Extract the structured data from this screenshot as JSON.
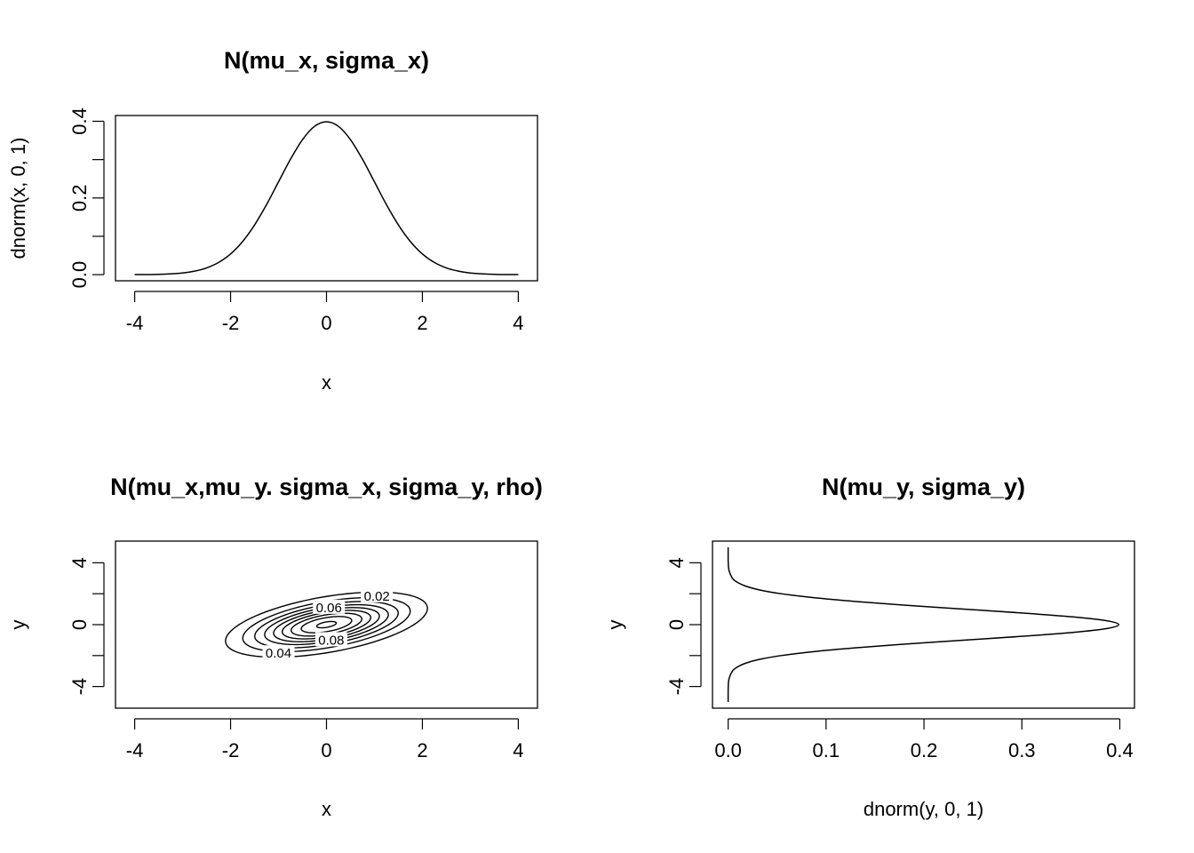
{
  "chart_data": [
    {
      "type": "line",
      "title": "N(mu_x, sigma_x)",
      "xlabel": "x",
      "ylabel": "dnorm(x, 0, 1)",
      "xlim": [
        -4.4,
        4.4
      ],
      "ylim": [
        -0.016,
        0.415
      ],
      "xticks": [
        -4,
        -2,
        0,
        2,
        4
      ],
      "yticks": [
        0.0,
        0.1,
        0.2,
        0.3,
        0.4
      ],
      "yticklabels": [
        "0.0",
        "",
        "0.2",
        "",
        "0.4"
      ],
      "series": [
        {
          "x": [
            -4.0,
            -3.5,
            -3.0,
            -2.75,
            -2.5,
            -2.25,
            -2.0,
            -1.75,
            -1.5,
            -1.25,
            -1.0,
            -0.75,
            -0.5,
            -0.25,
            0.0,
            0.25,
            0.5,
            0.75,
            1.0,
            1.25,
            1.5,
            1.75,
            2.0,
            2.25,
            2.5,
            2.75,
            3.0,
            3.5,
            4.0
          ],
          "y": [
            0.0001,
            0.0009,
            0.0044,
            0.0091,
            0.0175,
            0.0317,
            0.054,
            0.0863,
            0.1295,
            0.1826,
            0.242,
            0.3011,
            0.3521,
            0.3867,
            0.3989,
            0.3867,
            0.3521,
            0.3011,
            0.242,
            0.1826,
            0.1295,
            0.0863,
            0.054,
            0.0317,
            0.0175,
            0.0091,
            0.0044,
            0.0009,
            0.0001
          ]
        }
      ],
      "grid": false
    },
    {
      "type": "contour",
      "title": "N(mu_x,mu_y. sigma_x, sigma_y, rho)",
      "xlabel": "x",
      "ylabel": "y",
      "xlim": [
        -4.4,
        4.4
      ],
      "ylim": [
        -5.4,
        5.4
      ],
      "xticks": [
        -4,
        -2,
        0,
        2,
        4
      ],
      "yticks": [
        -4,
        -2,
        0,
        2,
        4
      ],
      "yticklabels": [
        "-4",
        "",
        "0",
        "",
        "4"
      ],
      "rho": 0.5,
      "levels": [
        0.02,
        0.04,
        0.06,
        0.08,
        0.1,
        0.12,
        0.14,
        0.16,
        0.18
      ],
      "level_labels": [
        {
          "text": "0.02",
          "x": 1.05,
          "y": 1.85
        },
        {
          "text": "0.04",
          "x": -1.0,
          "y": -1.85
        },
        {
          "text": "0.06",
          "x": 0.05,
          "y": 1.1
        },
        {
          "text": "0.08",
          "x": 0.1,
          "y": -1.0
        }
      ],
      "grid": false
    },
    {
      "type": "line",
      "title": "N(mu_y, sigma_y)",
      "xlabel": "dnorm(y, 0, 1)",
      "ylabel": "y",
      "xlim": [
        -0.016,
        0.415
      ],
      "ylim": [
        -5.4,
        5.4
      ],
      "xticks": [
        0.0,
        0.1,
        0.2,
        0.3,
        0.4
      ],
      "xticklabels": [
        "0.0",
        "0.1",
        "0.2",
        "0.3",
        "0.4"
      ],
      "yticks": [
        -4,
        -2,
        0,
        2,
        4
      ],
      "yticklabels": [
        "-4",
        "",
        "0",
        "",
        "4"
      ],
      "series": [
        {
          "y": [
            -5.0,
            -4.5,
            -4.0,
            -3.5,
            -3.0,
            -2.75,
            -2.5,
            -2.25,
            -2.0,
            -1.75,
            -1.5,
            -1.25,
            -1.0,
            -0.75,
            -0.5,
            -0.25,
            0.0,
            0.25,
            0.5,
            0.75,
            1.0,
            1.25,
            1.5,
            1.75,
            2.0,
            2.25,
            2.5,
            2.75,
            3.0,
            3.5,
            4.0,
            4.5,
            5.0
          ],
          "x": [
            0.0,
            0.0,
            0.0001,
            0.0009,
            0.0044,
            0.0091,
            0.0175,
            0.0317,
            0.054,
            0.0863,
            0.1295,
            0.1826,
            0.242,
            0.3011,
            0.3521,
            0.3867,
            0.3989,
            0.3867,
            0.3521,
            0.3011,
            0.242,
            0.1826,
            0.1295,
            0.0863,
            0.054,
            0.0317,
            0.0175,
            0.0091,
            0.0044,
            0.0009,
            0.0001,
            0.0,
            0.0
          ]
        }
      ],
      "grid": false
    }
  ]
}
